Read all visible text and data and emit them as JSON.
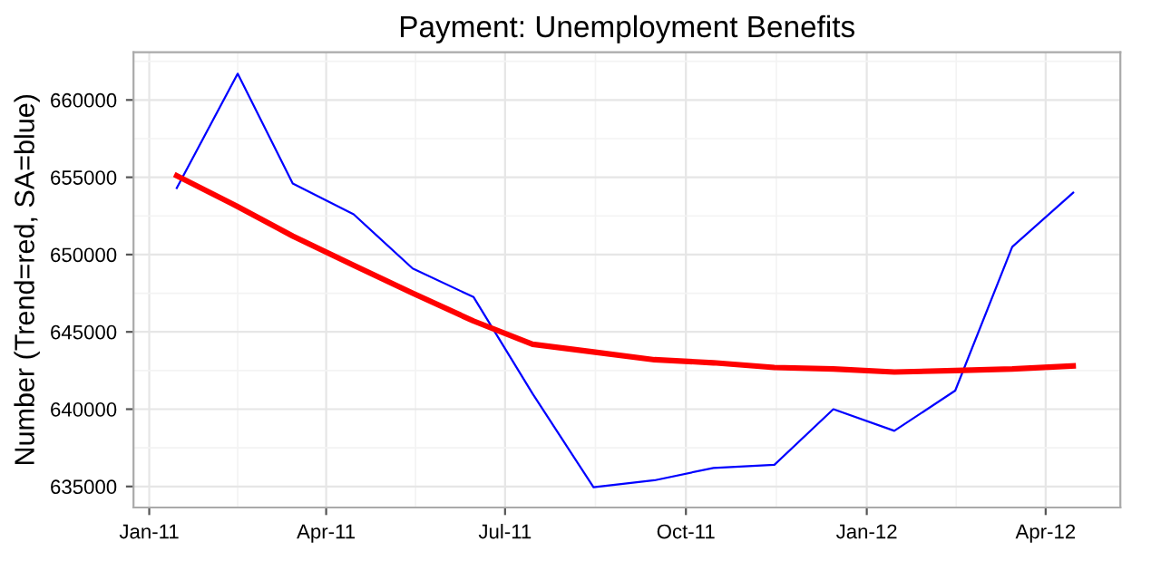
{
  "chart_data": {
    "type": "line",
    "title": "Payment: Unemployment Benefits",
    "ylabel": "Number (Trend=red, SA=blue)",
    "x": [
      "2011-01-15",
      "2011-02-15",
      "2011-03-15",
      "2011-04-15",
      "2011-05-15",
      "2011-06-15",
      "2011-07-15",
      "2011-08-15",
      "2011-09-15",
      "2011-10-15",
      "2011-11-15",
      "2011-12-15",
      "2012-01-15",
      "2012-02-15",
      "2012-03-15",
      "2012-04-15"
    ],
    "series": [
      {
        "color": "#0000ff",
        "values": [
          654300,
          661700,
          654600,
          652600,
          649100,
          647250,
          641000,
          634950,
          635400,
          636200,
          636400,
          640000,
          638600,
          641200,
          650500,
          654000
        ]
      },
      {
        "color": "#ff0000",
        "values": [
          655100,
          653100,
          651200,
          649300,
          647500,
          645700,
          644200,
          643700,
          643200,
          643000,
          642700,
          642600,
          642400,
          642500,
          642600,
          642800
        ]
      }
    ],
    "xlim": [
      "2010-12-24",
      "2012-05-09"
    ],
    "xticks": [
      {
        "value": "2011-01-01",
        "label": "Jan-11"
      },
      {
        "value": "2011-04-01",
        "label": "Apr-11"
      },
      {
        "value": "2011-07-01",
        "label": "Jul-11"
      },
      {
        "value": "2011-10-01",
        "label": "Oct-11"
      },
      {
        "value": "2012-01-01",
        "label": "Jan-12"
      },
      {
        "value": "2012-04-01",
        "label": "Apr-12"
      }
    ],
    "ylim": [
      633640,
      663090
    ],
    "yticks": [
      635000,
      640000,
      645000,
      650000,
      655000,
      660000
    ],
    "grid": true,
    "legend": false,
    "marker": "none",
    "line_style": "solid"
  }
}
